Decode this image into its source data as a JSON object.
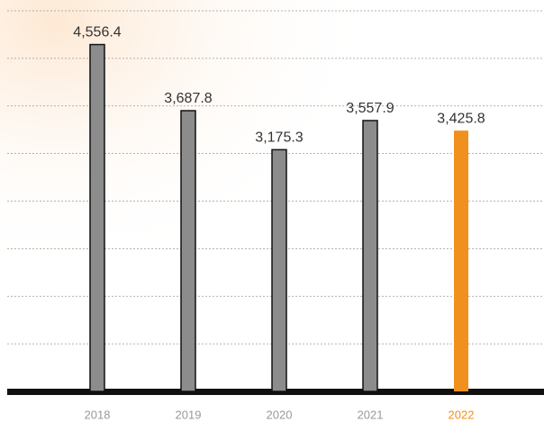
{
  "chart_data": {
    "type": "bar",
    "categories": [
      "2018",
      "2019",
      "2020",
      "2021",
      "2022"
    ],
    "values": [
      4556.4,
      3687.8,
      3175.3,
      3557.9,
      3425.8
    ],
    "value_labels": [
      "4,556.4",
      "3,687.8",
      "3,175.3",
      "3,557.9",
      "3,425.8"
    ],
    "colors": [
      "#8c8c8c",
      "#8c8c8c",
      "#8c8c8c",
      "#8c8c8c",
      "#f0901e"
    ],
    "label_colors": [
      "#999999",
      "#999999",
      "#999999",
      "#999999",
      "#f0901e"
    ],
    "ylim": [
      0,
      5000
    ],
    "yticks": [
      0,
      625,
      1250,
      1875,
      2500,
      3125,
      3750,
      4375,
      5000
    ],
    "grid": true
  }
}
